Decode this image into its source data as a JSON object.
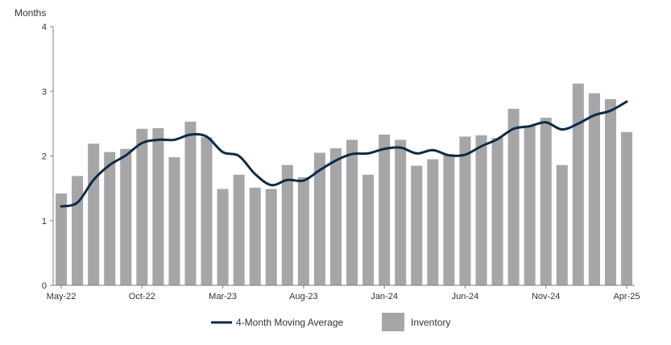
{
  "chart_data": {
    "type": "bar",
    "ylabel": "Months",
    "ylim": [
      0,
      4
    ],
    "yticks": [
      0,
      1,
      2,
      3,
      4
    ],
    "categories": [
      "May-22",
      "Jun-22",
      "Jul-22",
      "Aug-22",
      "Sep-22",
      "Oct-22",
      "Nov-22",
      "Dec-22",
      "Jan-23",
      "Feb-23",
      "Mar-23",
      "Apr-23",
      "May-23",
      "Jun-23",
      "Jul-23",
      "Aug-23",
      "Sep-23",
      "Oct-23",
      "Nov-23",
      "Dec-23",
      "Jan-24",
      "Feb-24",
      "Mar-24",
      "Apr-24",
      "May-24",
      "Jun-24",
      "Jul-24",
      "Aug-24",
      "Sep-24",
      "Oct-24",
      "Nov-24",
      "Dec-24",
      "Jan-25",
      "Feb-25",
      "Mar-25",
      "Apr-25"
    ],
    "x_tick_labels": [
      "May-22",
      "Oct-22",
      "Mar-23",
      "Aug-23",
      "Jan-24",
      "Jun-24",
      "Nov-24",
      "Apr-25"
    ],
    "x_tick_indices": [
      0,
      5,
      10,
      15,
      20,
      25,
      30,
      35
    ],
    "series": [
      {
        "name": "Inventory",
        "type": "bar",
        "color": "#a6a6a8",
        "values": [
          1.42,
          1.69,
          2.19,
          2.06,
          2.11,
          2.42,
          2.43,
          1.98,
          2.53,
          2.29,
          1.49,
          1.71,
          1.51,
          1.49,
          1.86,
          1.67,
          2.05,
          2.12,
          2.25,
          1.71,
          2.33,
          2.25,
          1.85,
          1.95,
          2.03,
          2.3,
          2.32,
          2.28,
          2.73,
          2.46,
          2.59,
          1.86,
          3.12,
          2.97,
          2.88,
          2.37
        ]
      },
      {
        "name": "4-Month Moving Average",
        "type": "line",
        "color": "#0e2a47",
        "values": [
          1.22,
          1.28,
          1.63,
          1.86,
          2.01,
          2.2,
          2.25,
          2.25,
          2.33,
          2.3,
          2.06,
          2.0,
          1.72,
          1.55,
          1.63,
          1.62,
          1.78,
          1.93,
          2.03,
          2.04,
          2.11,
          2.13,
          2.04,
          2.09,
          2.01,
          2.02,
          2.15,
          2.26,
          2.42,
          2.46,
          2.52,
          2.41,
          2.5,
          2.63,
          2.7,
          2.84
        ]
      }
    ],
    "legend": {
      "placement": "bottom",
      "items": [
        {
          "label": "4-Month Moving Average",
          "swatch": "line",
          "color": "#0e2a47"
        },
        {
          "label": "Inventory",
          "swatch": "box",
          "color": "#a6a6a8"
        }
      ]
    },
    "grid": false
  }
}
